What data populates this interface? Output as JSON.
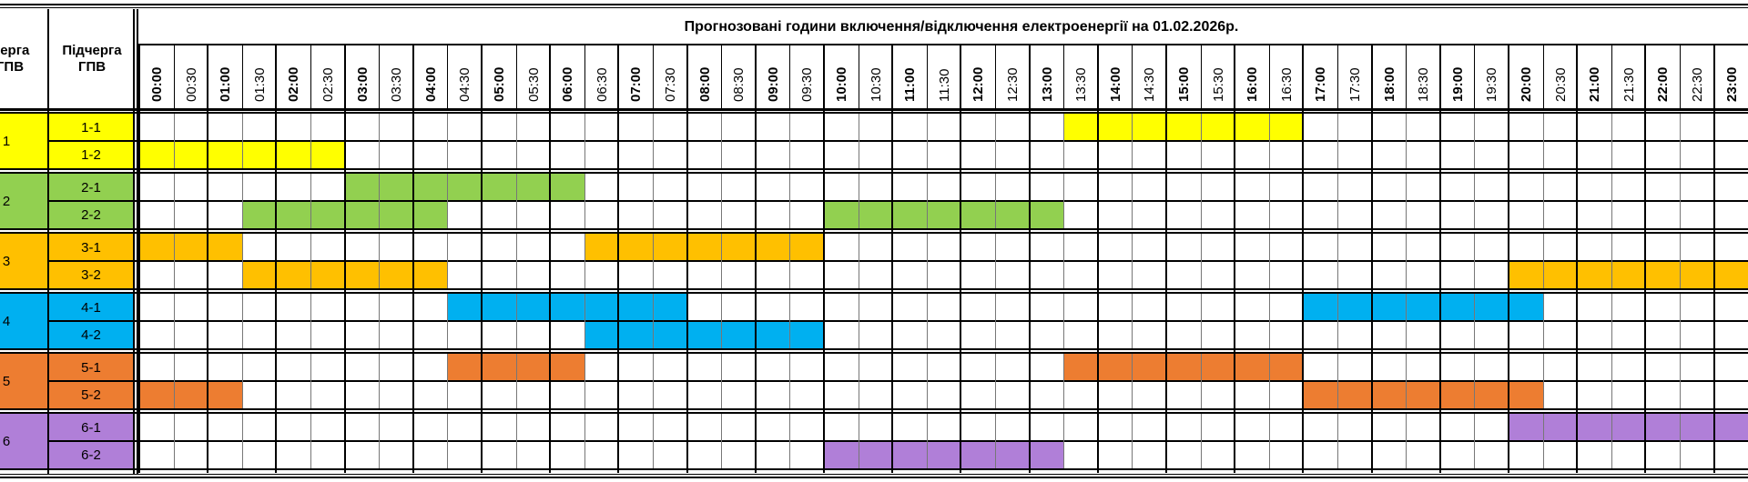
{
  "header": {
    "queue_label": "Черга\nГПВ",
    "subqueue_label": "Підчерга\nГПВ",
    "title": "Прогнозовані години включення/відключення електроенергії на 01.02.2026р."
  },
  "time_slots": [
    "00:00",
    "00:30",
    "01:00",
    "01:30",
    "02:00",
    "02:30",
    "03:00",
    "03:30",
    "04:00",
    "04:30",
    "05:00",
    "05:30",
    "06:00",
    "06:30",
    "07:00",
    "07:30",
    "08:00",
    "08:30",
    "09:00",
    "09:30",
    "10:00",
    "10:30",
    "11:00",
    "11:30",
    "12:00",
    "12:30",
    "13:00",
    "13:30",
    "14:00",
    "14:30",
    "15:00",
    "15:30",
    "16:00",
    "16:30",
    "17:00",
    "17:30",
    "18:00",
    "18:30",
    "19:00",
    "19:30",
    "20:00",
    "20:30",
    "21:00",
    "21:30",
    "22:00",
    "22:30",
    "23:00"
  ],
  "groups": [
    {
      "queue": "1",
      "color": "#ffff00",
      "subqueues": [
        {
          "label": "1-1",
          "outages": [
            [
              13.5,
              17.0
            ]
          ]
        },
        {
          "label": "1-2",
          "outages": [
            [
              0,
              3.0
            ]
          ]
        }
      ]
    },
    {
      "queue": "2",
      "color": "#92d050",
      "subqueues": [
        {
          "label": "2-1",
          "outages": [
            [
              3.0,
              6.5
            ]
          ]
        },
        {
          "label": "2-2",
          "outages": [
            [
              1.5,
              4.5
            ],
            [
              10.0,
              13.5
            ]
          ]
        }
      ]
    },
    {
      "queue": "3",
      "color": "#ffc000",
      "subqueues": [
        {
          "label": "3-1",
          "outages": [
            [
              0,
              1.5
            ],
            [
              6.5,
              10.0
            ]
          ]
        },
        {
          "label": "3-2",
          "outages": [
            [
              1.5,
              4.5
            ],
            [
              20.0,
              24.0
            ]
          ]
        }
      ]
    },
    {
      "queue": "4",
      "color": "#00b0f0",
      "subqueues": [
        {
          "label": "4-1",
          "outages": [
            [
              4.5,
              8.0
            ],
            [
              17.0,
              20.5
            ]
          ]
        },
        {
          "label": "4-2",
          "outages": [
            [
              6.5,
              10.0
            ]
          ]
        }
      ]
    },
    {
      "queue": "5",
      "color": "#ed7d31",
      "subqueues": [
        {
          "label": "5-1",
          "outages": [
            [
              4.5,
              6.5
            ],
            [
              13.5,
              17.0
            ]
          ]
        },
        {
          "label": "5-2",
          "outages": [
            [
              0,
              1.5
            ],
            [
              17.0,
              20.5
            ]
          ]
        }
      ]
    },
    {
      "queue": "6",
      "color": "#b07fd8",
      "subqueues": [
        {
          "label": "6-1",
          "outages": [
            [
              20.0,
              24.0
            ]
          ]
        },
        {
          "label": "6-2",
          "outages": [
            [
              10.0,
              13.5
            ]
          ]
        }
      ]
    }
  ]
}
